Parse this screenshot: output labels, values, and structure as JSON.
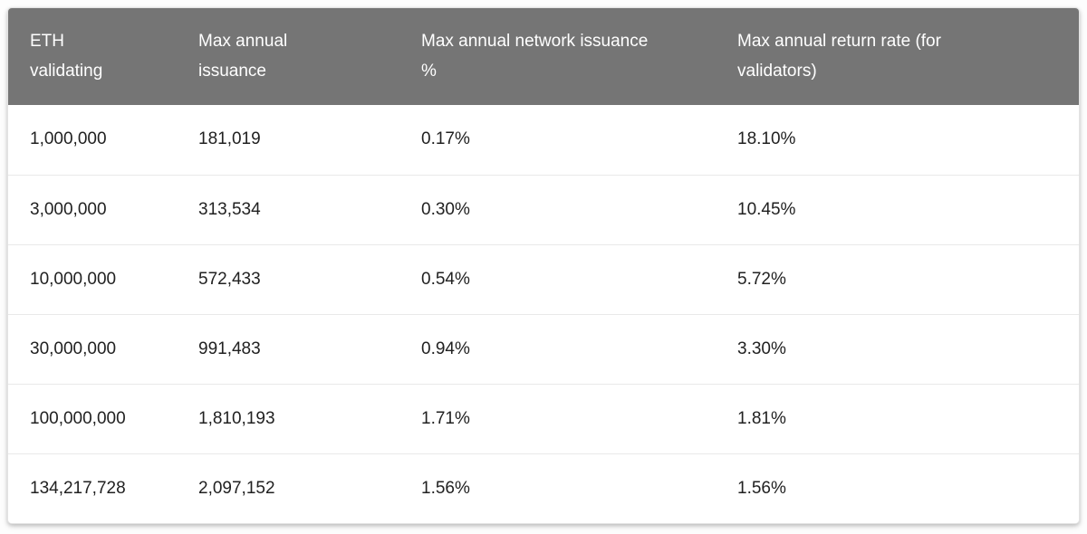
{
  "table": {
    "columns": [
      {
        "id": "eth-validating",
        "label": "ETH\nvalidating"
      },
      {
        "id": "max-annual-issuance",
        "label": "Max annual\nissuance"
      },
      {
        "id": "max-annual-network-issuance-pct",
        "label": "Max annual network issuance\n%"
      },
      {
        "id": "max-annual-return-rate",
        "label": "Max annual return rate (for\nvalidators)"
      }
    ],
    "rows": [
      [
        "1,000,000",
        "181,019",
        "0.17%",
        "18.10%"
      ],
      [
        "3,000,000",
        "313,534",
        "0.30%",
        "10.45%"
      ],
      [
        "10,000,000",
        "572,433",
        "0.54%",
        "5.72%"
      ],
      [
        "30,000,000",
        "991,483",
        "0.94%",
        "3.30%"
      ],
      [
        "100,000,000",
        "1,810,193",
        "1.71%",
        "1.81%"
      ],
      [
        "134,217,728",
        "2,097,152",
        "1.56%",
        "1.56%"
      ]
    ]
  },
  "chart_data": {
    "type": "table",
    "title": "",
    "columns": [
      "ETH validating",
      "Max annual issuance",
      "Max annual network issuance %",
      "Max annual return rate (for validators)"
    ],
    "rows": [
      [
        "1,000,000",
        "181,019",
        "0.17%",
        "18.10%"
      ],
      [
        "3,000,000",
        "313,534",
        "0.30%",
        "10.45%"
      ],
      [
        "10,000,000",
        "572,433",
        "0.54%",
        "5.72%"
      ],
      [
        "30,000,000",
        "991,483",
        "0.94%",
        "3.30%"
      ],
      [
        "100,000,000",
        "1,810,193",
        "1.71%",
        "1.81%"
      ],
      [
        "134,217,728",
        "2,097,152",
        "1.56%",
        "1.56%"
      ]
    ],
    "numeric_rows": [
      {
        "eth_validating": 1000000,
        "max_annual_issuance": 181019,
        "max_annual_network_issuance_pct": 0.17,
        "max_annual_return_rate_pct": 18.1
      },
      {
        "eth_validating": 3000000,
        "max_annual_issuance": 313534,
        "max_annual_network_issuance_pct": 0.3,
        "max_annual_return_rate_pct": 10.45
      },
      {
        "eth_validating": 10000000,
        "max_annual_issuance": 572433,
        "max_annual_network_issuance_pct": 0.54,
        "max_annual_return_rate_pct": 5.72
      },
      {
        "eth_validating": 30000000,
        "max_annual_issuance": 991483,
        "max_annual_network_issuance_pct": 0.94,
        "max_annual_return_rate_pct": 3.3
      },
      {
        "eth_validating": 100000000,
        "max_annual_issuance": 1810193,
        "max_annual_network_issuance_pct": 1.71,
        "max_annual_return_rate_pct": 1.81
      },
      {
        "eth_validating": 134217728,
        "max_annual_issuance": 2097152,
        "max_annual_network_issuance_pct": 1.56,
        "max_annual_return_rate_pct": 1.56
      }
    ]
  },
  "colors": {
    "header_bg": "#757575",
    "header_text": "#ffffff",
    "body_text": "#212121",
    "divider": "#e9e9e9",
    "card_bg": "#ffffff",
    "card_border": "#e3e3e3",
    "page_bg": "#fdfdfd"
  }
}
